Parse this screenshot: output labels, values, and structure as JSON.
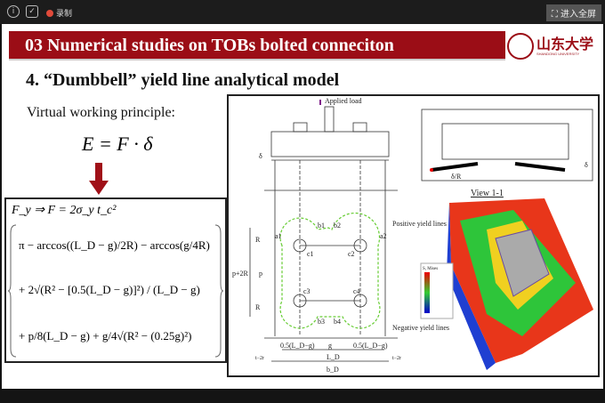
{
  "topbar": {
    "recording_label": "录制",
    "fullscreen_label": "进入全屏",
    "icons": [
      "info-icon",
      "shield-icon",
      "record-icon",
      "fullscreen-icon"
    ]
  },
  "slide": {
    "banner_title": "03 Numerical studies on TOBs  bolted conneciton",
    "logo": {
      "name": "山东大学",
      "sub": "SHANDONG UNIVERSITY"
    },
    "heading": "4. “Dumbbell” yield line analytical model",
    "principle": "Virtual working principle:",
    "equation": "E = F · δ",
    "formula": {
      "line1": "F_y ⇒ F = 2σ_y t_c²",
      "line2": "π − arccos((L_D − g)/2R) − arccos(g/4R)",
      "line3": "+ 2√(R² − [0.5(L_D − g)]²) / (L_D − g)",
      "line4": "+ p/8(L_D − g) + g/4√(R² − (0.25g)²)"
    },
    "figure": {
      "applied_load": "Applied load",
      "delta": "δ",
      "R": "R",
      "p2R": "p+2R",
      "p": "p",
      "positive": "Positive yield lines",
      "negative": "Negative yield lines",
      "dim_half": "0.5(L_D−g)",
      "g": "g",
      "LD": "L_D",
      "bD": "b_D",
      "t2r": "t−2r",
      "view": "View 1-1",
      "dR": "δ/R",
      "points": [
        "a1",
        "b1",
        "b2",
        "a2",
        "d1",
        "c1",
        "c2",
        "d2",
        "c3",
        "c4",
        "d3",
        "d4",
        "a3",
        "b3",
        "b4",
        "a4"
      ],
      "legend_title": "S, Mises"
    }
  }
}
